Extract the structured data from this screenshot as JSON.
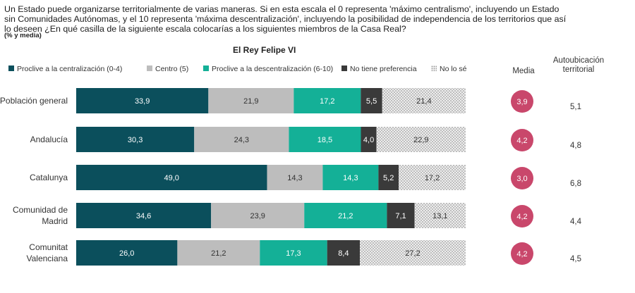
{
  "question": {
    "text": "Un Estado puede organizarse territorialmente de varias maneras. Si en esta escala el 0 representa 'máximo centralismo', incluyendo un Estado sin Comunidades Autónomas, y el 10 representa 'máxima descentralización', incluyendo la posibilidad de independencia de los territorios que así lo deseen ¿En qué casilla de la siguiente escala colocarías a los siguientes miembros de la Casa Real?",
    "note": "(% y media)"
  },
  "columns": {
    "media": "Media",
    "autoubicacion": "Autoubicación territorial"
  },
  "colors": {
    "centralizacion": "#0b4f5c",
    "centro": "#bdbdbd",
    "descentralizacion": "#14b097",
    "no_preferencia": "#3a3a3a",
    "no_se": "#d9d9d9",
    "media_circle": "#c9476b"
  },
  "chart_data": {
    "type": "bar",
    "orientation": "horizontal",
    "stacked": true,
    "title": "El Rey Felipe VI",
    "legend_position": "top",
    "categories": [
      "Población general",
      "Andalucía",
      "Catalunya",
      "Comunidad de Madrid",
      "Comunitat Valenciana"
    ],
    "series": [
      {
        "name": "Proclive a la centralización (0-4)",
        "color_key": "centralizacion",
        "values": [
          33.9,
          30.3,
          49.0,
          34.6,
          26.0
        ],
        "labels": [
          "33,9",
          "30,3",
          "49,0",
          "34,6",
          "26,0"
        ]
      },
      {
        "name": "Centro (5)",
        "color_key": "centro",
        "values": [
          21.9,
          24.3,
          14.3,
          23.9,
          21.2
        ],
        "labels": [
          "21,9",
          "24,3",
          "14,3",
          "23,9",
          "21,2"
        ]
      },
      {
        "name": "Proclive a la descentralización (6-10)",
        "color_key": "descentralizacion",
        "values": [
          17.2,
          18.5,
          14.3,
          21.2,
          17.3
        ],
        "labels": [
          "17,2",
          "18,5",
          "14,3",
          "21,2",
          "17,3"
        ]
      },
      {
        "name": "No tiene preferencia",
        "color_key": "no_preferencia",
        "values": [
          5.5,
          4.0,
          5.2,
          7.1,
          8.4
        ],
        "labels": [
          "5,5",
          "4,0",
          "5,2",
          "7,1",
          "8,4"
        ]
      },
      {
        "name": "No lo sé",
        "color_key": "no_se",
        "values": [
          21.4,
          22.9,
          17.2,
          13.1,
          27.2
        ],
        "labels": [
          "21,4",
          "22,9",
          "17,2",
          "13,1",
          "27,2"
        ]
      }
    ],
    "media": {
      "values": [
        3.9,
        4.2,
        3.0,
        4.2,
        4.2
      ],
      "labels": [
        "3,9",
        "4,2",
        "3,0",
        "4,2",
        "4,2"
      ]
    },
    "autoubicacion": {
      "values": [
        5.1,
        4.8,
        6.8,
        4.4,
        4.5
      ],
      "labels": [
        "5,1",
        "4,8",
        "6,8",
        "4,4",
        "4,5"
      ]
    }
  }
}
